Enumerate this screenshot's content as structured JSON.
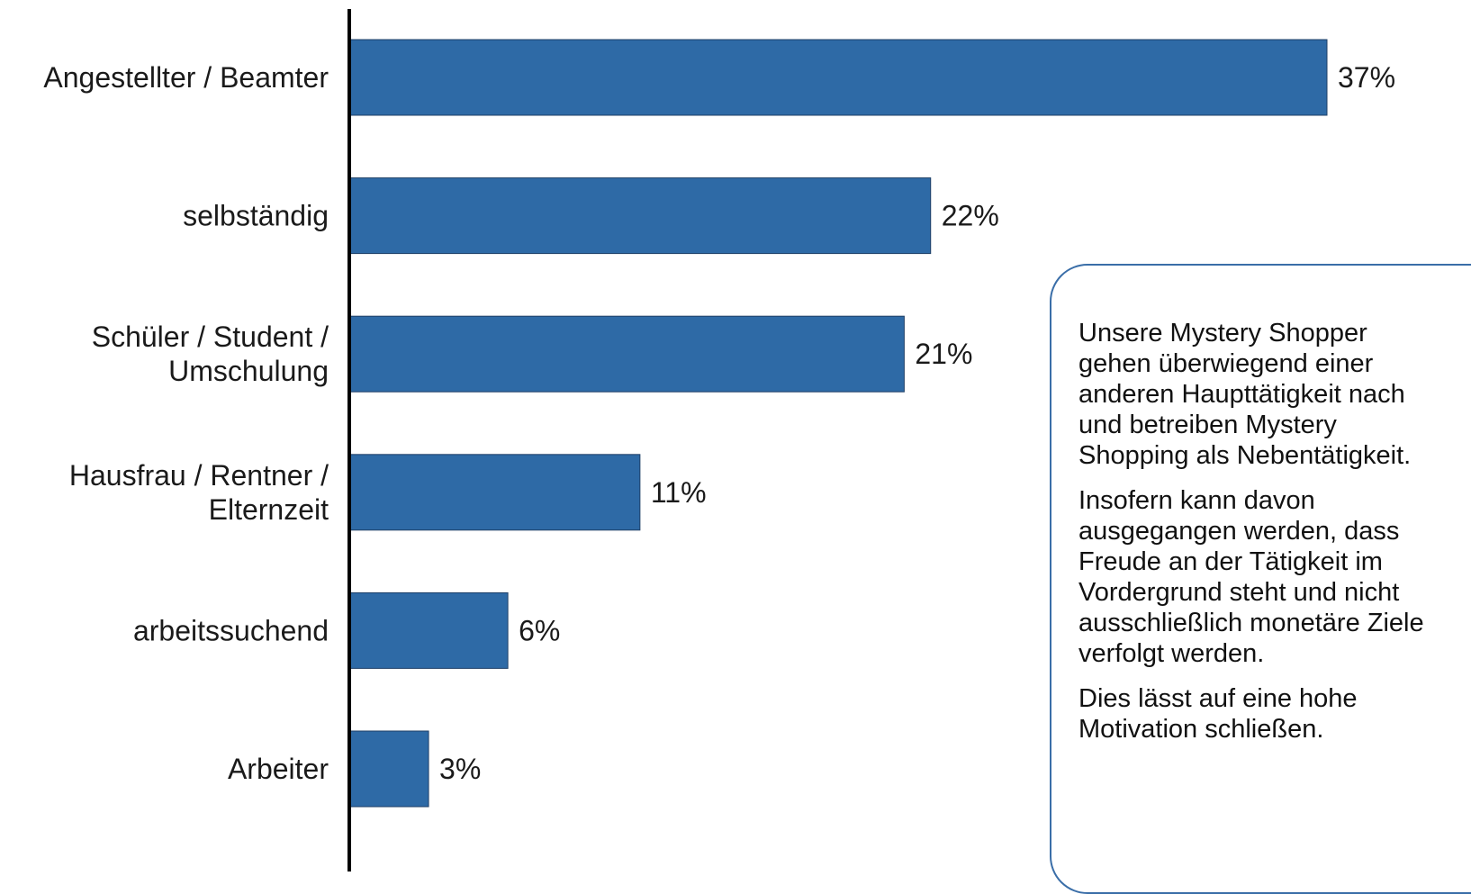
{
  "chart_data": {
    "type": "bar",
    "orientation": "horizontal",
    "categories": [
      "Angestellter / Beamter",
      "selbständig",
      "Schüler / Student / Umschulung",
      "Hausfrau / Rentner / Elternzeit",
      "arbeitssuchend",
      "Arbeiter"
    ],
    "category_lines": [
      [
        "Angestellter / Beamter"
      ],
      [
        "selbständig"
      ],
      [
        "Schüler / Student /",
        "Umschulung"
      ],
      [
        "Hausfrau / Rentner /",
        "Elternzeit"
      ],
      [
        "arbeitssuchend"
      ],
      [
        "Arbeiter"
      ]
    ],
    "values": [
      37,
      22,
      21,
      11,
      6,
      3
    ],
    "value_labels": [
      "37%",
      "22%",
      "21%",
      "11%",
      "6%",
      "3%"
    ],
    "unit": "%",
    "xlim": [
      0,
      37
    ],
    "grid": false,
    "bar_color": "#2e6aa6"
  },
  "note": {
    "paragraphs": [
      [
        "Unsere Mystery Shopper",
        "gehen überwiegend einer",
        "anderen Haupttätigkeit nach",
        "und betreiben Mystery",
        "Shopping als Nebentätigkeit."
      ],
      [
        "Insofern kann davon",
        "ausgegangen werden, dass",
        "Freude an der Tätigkeit im",
        "Vordergrund steht und nicht",
        "ausschließlich monetäre Ziele",
        "verfolgt werden."
      ],
      [
        "Dies lässt auf eine hohe",
        "Motivation schließen."
      ]
    ]
  }
}
